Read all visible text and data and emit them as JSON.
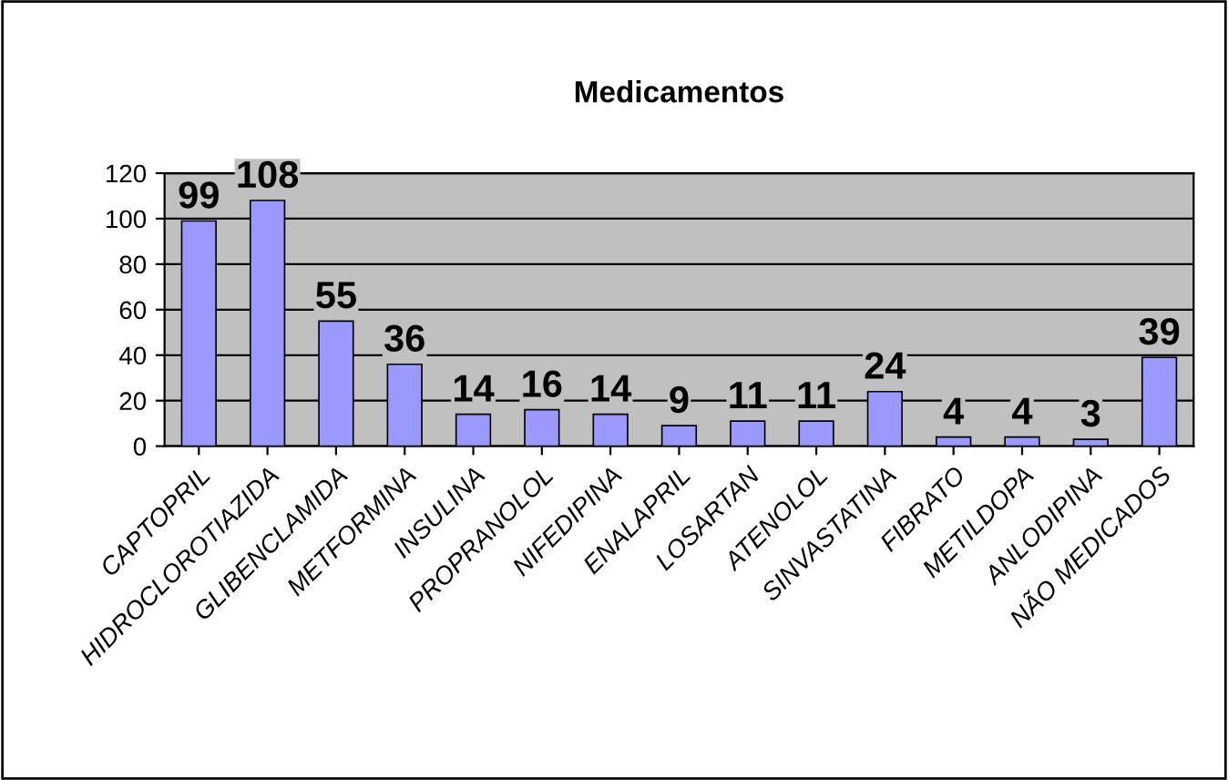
{
  "chart_data": {
    "type": "bar",
    "title": "Medicamentos",
    "categories": [
      "CAPTOPRIL",
      "HIDROCLOROTIAZIDA",
      "GLIBENCLAMIDA",
      "METFORMINA",
      "INSULINA",
      "PROPRANOLOL",
      "NIFEDIPINA",
      "ENALAPRIL",
      "LOSARTAN",
      "ATENOLOL",
      "SINVASTATINA",
      "FIBRATO",
      "METILDOPA",
      "ANLODIPINA",
      "NÃO MEDICADOS"
    ],
    "values": [
      99,
      108,
      55,
      36,
      14,
      16,
      14,
      9,
      11,
      11,
      24,
      4,
      4,
      3,
      39
    ],
    "color": "#9999ff",
    "ylim": [
      0,
      120
    ],
    "yticks": [
      0,
      20,
      40,
      60,
      80,
      100,
      120
    ],
    "grid": "y",
    "data_labels": true,
    "legend": false
  }
}
